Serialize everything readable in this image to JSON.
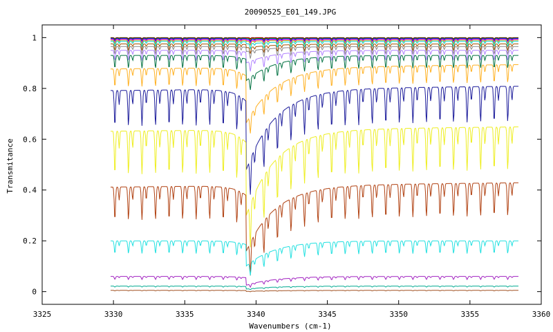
{
  "chart_data": {
    "type": "line",
    "title": "20090525_E01_149.JPG",
    "xlabel": "Wavenumbers (cm-1)",
    "ylabel": "Transmitance",
    "xlim": [
      3325,
      3360
    ],
    "ylim": [
      -0.05,
      1.05
    ],
    "x_ticks": [
      3325,
      3330,
      3335,
      3340,
      3345,
      3350,
      3355,
      3360
    ],
    "x_tick_labels": [
      "3325",
      "3330",
      "3335",
      "3340",
      "3345",
      "3350",
      "3355",
      "3360"
    ],
    "y_ticks": [
      0,
      0.2,
      0.4,
      0.6,
      0.8,
      1
    ],
    "y_tick_labels": [
      "0",
      "0.2",
      "0.4",
      "0.6",
      "0.8",
      "1"
    ],
    "grid": false,
    "legend": "none",
    "x_range": [
      3329.8,
      3358.4
    ],
    "feature": {
      "edge_x": 3339.3,
      "dip_period": 0.95,
      "dip_start": 3330.1
    },
    "series": [
      {
        "color": "#000000",
        "baseline": 1.0,
        "dip_depth": 0.004,
        "edge_drop": 0.0
      },
      {
        "color": "#ff0000",
        "baseline": 0.999,
        "dip_depth": 0.006,
        "edge_drop": 0.0
      },
      {
        "color": "#00aa00",
        "baseline": 0.998,
        "dip_depth": 0.008,
        "edge_drop": 0.002
      },
      {
        "color": "#0000ff",
        "baseline": 0.996,
        "dip_depth": 0.01,
        "edge_drop": 0.003
      },
      {
        "color": "#ff00ff",
        "baseline": 0.993,
        "dip_depth": 0.012,
        "edge_drop": 0.004
      },
      {
        "color": "#aaaa00",
        "baseline": 0.99,
        "dip_depth": 0.015,
        "edge_drop": 0.005
      },
      {
        "color": "#00cccc",
        "baseline": 0.985,
        "dip_depth": 0.02,
        "edge_drop": 0.01
      },
      {
        "color": "#a05000",
        "baseline": 0.975,
        "dip_depth": 0.025,
        "edge_drop": 0.015
      },
      {
        "color": "#888888",
        "baseline": 0.965,
        "dip_depth": 0.03,
        "edge_drop": 0.02
      },
      {
        "color": "#b080ff",
        "baseline": 0.95,
        "dip_depth": 0.04,
        "edge_drop": 0.05
      },
      {
        "color": "#007040",
        "baseline": 0.93,
        "dip_depth": 0.05,
        "edge_drop": 0.1
      },
      {
        "color": "#ffb020",
        "baseline": 0.885,
        "dip_depth": 0.07,
        "edge_drop": 0.22
      },
      {
        "color": "#1a1a9a",
        "baseline": 0.8,
        "dip_depth": 0.14,
        "edge_drop": 0.32
      },
      {
        "color": "#eeee20",
        "baseline": 0.64,
        "dip_depth": 0.17,
        "edge_drop": 0.34
      },
      {
        "color": "#b04010",
        "baseline": 0.42,
        "dip_depth": 0.13,
        "edge_drop": 0.26
      },
      {
        "color": "#20e0e0",
        "baseline": 0.2,
        "dip_depth": 0.05,
        "edge_drop": 0.1
      },
      {
        "color": "#a020c0",
        "baseline": 0.06,
        "dip_depth": 0.012,
        "edge_drop": 0.035
      },
      {
        "color": "#00aa90",
        "baseline": 0.022,
        "dip_depth": 0.004,
        "edge_drop": 0.012
      },
      {
        "color": "#a05020",
        "baseline": 0.005,
        "dip_depth": 0.002,
        "edge_drop": 0.004
      }
    ]
  }
}
